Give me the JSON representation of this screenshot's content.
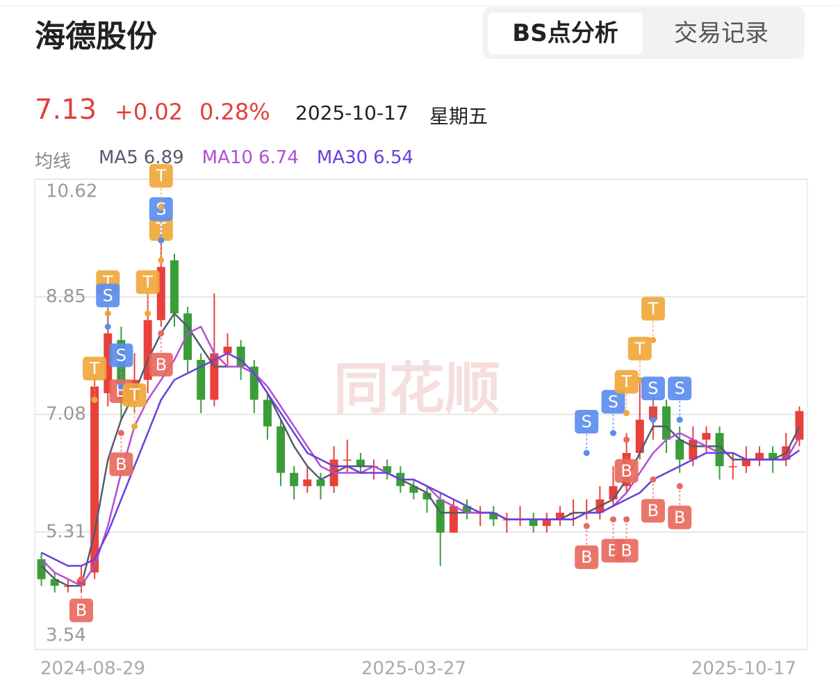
{
  "header": {
    "title": "海德股份",
    "tabs": [
      "BS点分析",
      "交易记录"
    ],
    "quote": {
      "price": "7.13",
      "change": "+0.02",
      "change_pct": "0.28%",
      "date": "2025-10-17",
      "weekday": "星期五"
    },
    "ma_label": "均线",
    "watermark": "同花顺"
  },
  "chart_data": {
    "type": "candlestick",
    "categories": [
      "2024-08-29",
      null,
      null,
      null,
      null,
      null,
      null,
      null,
      null,
      null,
      null,
      null,
      null,
      null,
      null,
      null,
      null,
      null,
      null,
      null,
      null,
      null,
      null,
      null,
      null,
      null,
      null,
      null,
      "2025-03-27",
      null,
      null,
      null,
      null,
      null,
      null,
      null,
      null,
      null,
      null,
      null,
      null,
      null,
      null,
      null,
      null,
      null,
      null,
      null,
      null,
      null,
      null,
      null,
      null,
      null,
      null,
      null,
      null,
      "2025-10-17"
    ],
    "open": [
      4.9,
      4.6,
      4.5,
      4.5,
      4.7,
      7.4,
      8.2,
      7.3,
      7.6,
      8.5,
      9.4,
      8.6,
      7.9,
      7.3,
      8.0,
      8.1,
      7.8,
      7.3,
      6.9,
      6.2,
      6.0,
      6.1,
      6.0,
      6.4,
      6.4,
      6.3,
      6.3,
      6.2,
      6.0,
      5.9,
      5.8,
      5.3,
      5.7,
      5.6,
      5.6,
      5.5,
      5.5,
      5.5,
      5.4,
      5.5,
      5.6,
      5.6,
      5.6,
      5.8,
      6.0,
      6.5,
      7.0,
      7.2,
      6.7,
      6.4,
      6.7,
      6.8,
      6.3,
      6.3,
      6.4,
      6.5,
      6.4,
      6.7
    ],
    "high": [
      5.0,
      4.7,
      4.6,
      4.8,
      7.8,
      9.0,
      8.4,
      8.0,
      8.9,
      10.0,
      9.5,
      8.7,
      8.0,
      8.9,
      8.3,
      8.2,
      7.9,
      7.4,
      7.0,
      6.3,
      6.3,
      6.2,
      6.6,
      6.7,
      6.5,
      6.4,
      6.4,
      6.3,
      6.1,
      6.0,
      5.9,
      5.8,
      5.8,
      5.7,
      5.7,
      5.6,
      5.7,
      5.6,
      5.6,
      5.7,
      5.8,
      5.8,
      6.0,
      6.3,
      6.8,
      7.6,
      7.5,
      7.3,
      6.9,
      6.9,
      6.9,
      6.9,
      6.5,
      6.6,
      6.6,
      6.6,
      6.8,
      7.2
    ],
    "low": [
      4.5,
      4.4,
      4.4,
      4.4,
      4.6,
      7.2,
      7.0,
      7.1,
      7.4,
      8.4,
      8.4,
      7.7,
      7.1,
      7.2,
      7.8,
      7.6,
      7.1,
      6.7,
      6.0,
      5.8,
      5.9,
      5.8,
      5.9,
      6.2,
      6.2,
      6.1,
      6.1,
      5.9,
      5.8,
      5.6,
      4.8,
      5.3,
      5.5,
      5.4,
      5.4,
      5.3,
      5.4,
      5.3,
      5.3,
      5.4,
      5.4,
      5.5,
      5.5,
      5.7,
      5.9,
      6.4,
      6.7,
      6.5,
      6.2,
      6.3,
      6.5,
      6.1,
      6.1,
      6.2,
      6.3,
      6.2,
      6.3,
      6.6
    ],
    "close": [
      4.6,
      4.5,
      4.5,
      4.6,
      7.5,
      8.3,
      7.3,
      7.6,
      8.5,
      9.3,
      8.6,
      7.9,
      7.3,
      8.0,
      8.1,
      7.8,
      7.3,
      6.9,
      6.2,
      6.0,
      6.1,
      6.0,
      6.4,
      6.4,
      6.3,
      6.3,
      6.2,
      6.0,
      5.9,
      5.8,
      5.3,
      5.7,
      5.6,
      5.6,
      5.5,
      5.5,
      5.5,
      5.4,
      5.5,
      5.6,
      5.6,
      5.6,
      5.8,
      6.0,
      6.5,
      7.0,
      7.2,
      6.7,
      6.4,
      6.7,
      6.8,
      6.3,
      6.3,
      6.4,
      6.5,
      6.4,
      6.6,
      7.13
    ],
    "up_color": "#e8413c",
    "down_color": "#3a9d3a",
    "series": [
      {
        "name": "MA5",
        "color": "#555a6e",
        "values": [
          4.8,
          4.6,
          4.5,
          4.5,
          5.3,
          6.4,
          7.0,
          7.4,
          7.9,
          8.3,
          8.6,
          8.4,
          8.1,
          7.8,
          7.8,
          7.8,
          7.7,
          7.4,
          7.0,
          6.6,
          6.3,
          6.1,
          6.2,
          6.3,
          6.3,
          6.3,
          6.2,
          6.1,
          6.0,
          5.9,
          5.6,
          5.6,
          5.6,
          5.6,
          5.6,
          5.5,
          5.5,
          5.5,
          5.5,
          5.5,
          5.6,
          5.6,
          5.7,
          5.8,
          6.1,
          6.5,
          6.9,
          6.9,
          6.7,
          6.6,
          6.6,
          6.6,
          6.4,
          6.4,
          6.4,
          6.4,
          6.5,
          6.89
        ]
      },
      {
        "name": "MA10",
        "color": "#b04fd6",
        "values": [
          4.9,
          4.7,
          4.6,
          4.5,
          4.8,
          5.4,
          6.2,
          6.9,
          7.3,
          7.6,
          7.9,
          8.3,
          8.4,
          8.0,
          7.8,
          7.8,
          7.7,
          7.5,
          7.2,
          6.9,
          6.6,
          6.3,
          6.2,
          6.2,
          6.2,
          6.3,
          6.2,
          6.1,
          6.1,
          6.0,
          5.8,
          5.7,
          5.6,
          5.6,
          5.6,
          5.5,
          5.5,
          5.5,
          5.5,
          5.5,
          5.5,
          5.6,
          5.6,
          5.7,
          5.9,
          6.2,
          6.5,
          6.7,
          6.8,
          6.7,
          6.6,
          6.5,
          6.5,
          6.4,
          6.4,
          6.4,
          6.4,
          6.74
        ]
      },
      {
        "name": "MA30",
        "color": "#6a3fdc",
        "values": [
          5.0,
          4.9,
          4.8,
          4.8,
          4.9,
          5.3,
          5.8,
          6.3,
          6.8,
          7.3,
          7.6,
          7.7,
          7.8,
          7.9,
          8.0,
          7.9,
          7.7,
          7.4,
          7.1,
          6.8,
          6.5,
          6.4,
          6.3,
          6.3,
          6.2,
          6.2,
          6.2,
          6.1,
          6.1,
          6.0,
          5.9,
          5.8,
          5.7,
          5.6,
          5.6,
          5.5,
          5.5,
          5.5,
          5.5,
          5.5,
          5.5,
          5.6,
          5.6,
          5.7,
          5.8,
          5.9,
          6.1,
          6.2,
          6.3,
          6.4,
          6.5,
          6.5,
          6.5,
          6.4,
          6.4,
          6.4,
          6.4,
          6.54
        ]
      }
    ],
    "signals": [
      {
        "label": "B",
        "index": 3,
        "value": 4.6
      },
      {
        "label": "T",
        "index": 4,
        "value": 7.3
      },
      {
        "label": "T",
        "index": 5,
        "value": 8.6
      },
      {
        "label": "S",
        "index": 5,
        "value": 8.4
      },
      {
        "label": "B",
        "index": 6,
        "value": 7.9
      },
      {
        "label": "S",
        "index": 6,
        "value": 7.5
      },
      {
        "label": "B",
        "index": 6,
        "value": 6.8
      },
      {
        "label": "T",
        "index": 7,
        "value": 6.9
      },
      {
        "label": "T",
        "index": 8,
        "value": 8.6
      },
      {
        "label": "B",
        "index": 9,
        "value": 8.3
      },
      {
        "label": "T",
        "index": 9,
        "value": 9.4
      },
      {
        "label": "S",
        "index": 9,
        "value": 9.7
      },
      {
        "label": "T",
        "index": 9,
        "value": 10.2
      },
      {
        "label": "B",
        "index": 41,
        "value": 5.4
      },
      {
        "label": "S",
        "index": 41,
        "value": 6.5
      },
      {
        "label": "B",
        "index": 43,
        "value": 5.5
      },
      {
        "label": "S",
        "index": 43,
        "value": 6.8
      },
      {
        "label": "B",
        "index": 44,
        "value": 5.5
      },
      {
        "label": "T",
        "index": 44,
        "value": 7.1
      },
      {
        "label": "B",
        "index": 44,
        "value": 6.7
      },
      {
        "label": "T",
        "index": 45,
        "value": 7.6
      },
      {
        "label": "T",
        "index": 46,
        "value": 8.2
      },
      {
        "label": "B",
        "index": 46,
        "value": 6.1
      },
      {
        "label": "S",
        "index": 46,
        "value": 7.0
      },
      {
        "label": "B",
        "index": 48,
        "value": 6.0
      },
      {
        "label": "S",
        "index": 48,
        "value": 7.0
      }
    ],
    "signal_colors": {
      "B": "#e86a5e",
      "S": "#5b8def",
      "T": "#f0a83c"
    },
    "ylim": [
      3.54,
      10.62
    ],
    "yticks": [
      10.62,
      8.85,
      7.08,
      5.31,
      3.54
    ],
    "grid": true
  }
}
